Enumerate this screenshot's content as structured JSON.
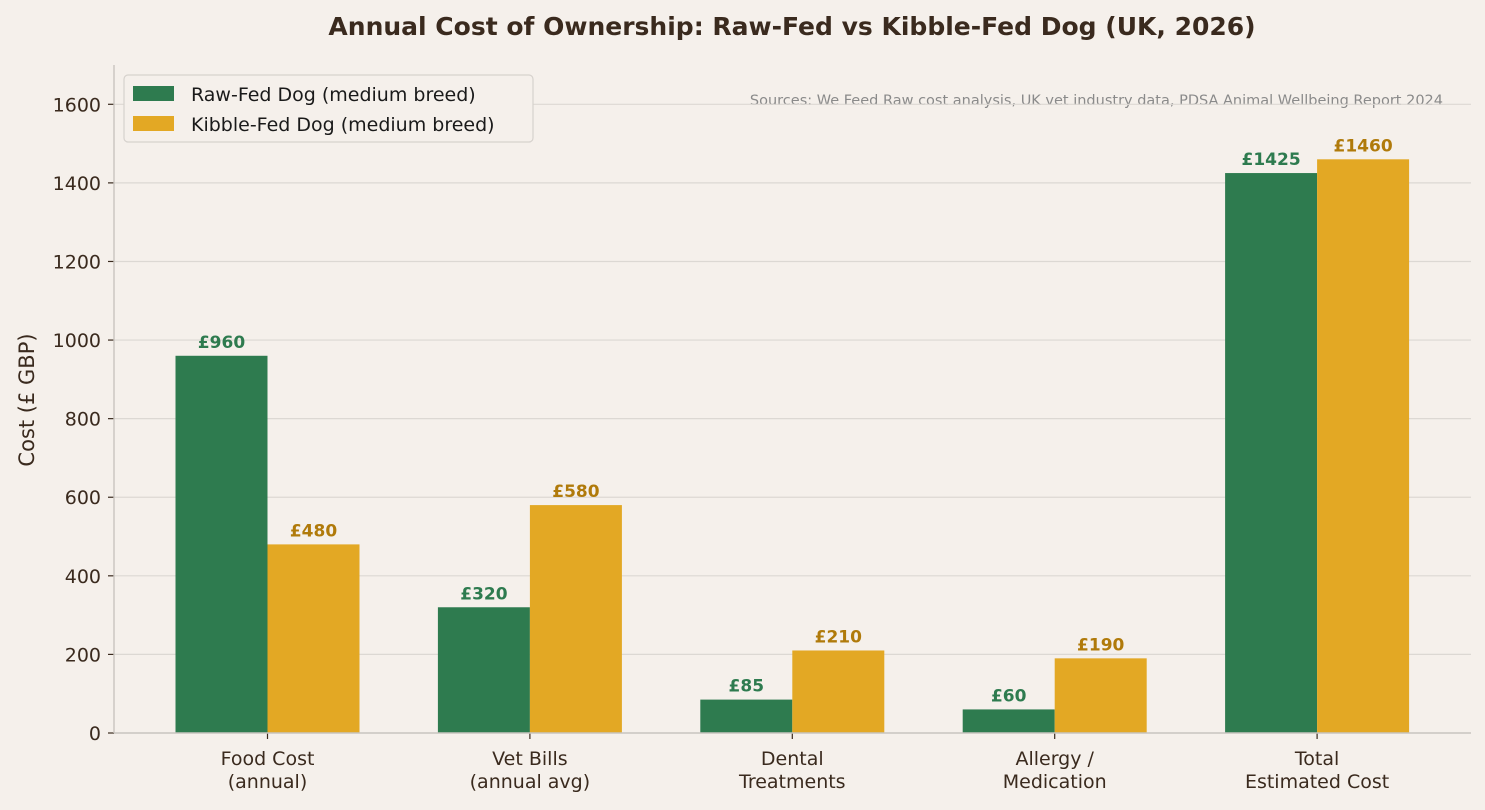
{
  "chart_data": {
    "type": "bar",
    "title": "Annual Cost of Ownership: Raw-Fed vs Kibble-Fed Dog (UK, 2026)",
    "ylabel": "Cost (£ GBP)",
    "xlabel": "",
    "ylim": [
      0,
      1700
    ],
    "yticks": [
      "0",
      "200",
      "400",
      "600",
      "800",
      "1000",
      "1200",
      "1400",
      "1600"
    ],
    "grid": true,
    "legend_position": "top-left",
    "annotation": "Sources: We Feed Raw cost analysis, UK vet industry data, PDSA Animal Wellbeing Report 2024",
    "categories": [
      [
        "Food Cost",
        "(annual)"
      ],
      [
        "Vet Bills",
        "(annual avg)"
      ],
      [
        "Dental",
        "Treatments"
      ],
      [
        "Allergy /",
        "Medication"
      ],
      [
        "Total",
        "Estimated Cost"
      ]
    ],
    "series": [
      {
        "name": "Raw-Fed Dog (medium breed)",
        "color": "#2e7b4f",
        "label_color": "#2e7b4f",
        "values": [
          960,
          320,
          85,
          60,
          1425
        ],
        "labels": [
          "£960",
          "£320",
          "£85",
          "£60",
          "£1425"
        ]
      },
      {
        "name": "Kibble-Fed Dog (medium breed)",
        "color": "#e3a824",
        "label_color": "#b07a0a",
        "values": [
          480,
          580,
          210,
          190,
          1460
        ],
        "labels": [
          "£480",
          "£580",
          "£210",
          "£190",
          "£1460"
        ]
      }
    ]
  },
  "colors": {
    "background": "#f5f0eb",
    "text": "#3a2a1e",
    "grid": "#dcd8d3",
    "axis": "#c8c4bf",
    "annotation": "#8a8a8a"
  }
}
